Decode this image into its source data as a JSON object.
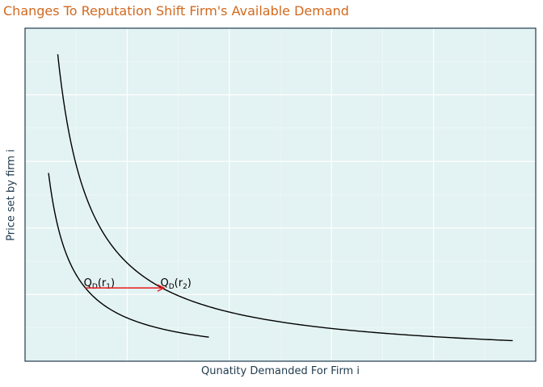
{
  "chart_data": {
    "type": "line",
    "title": "Changes To Reputation Shift Firm's Available Demand",
    "xlabel": "Qunatity Demanded For Firm i",
    "ylabel": "Price set by firm i",
    "grid": true,
    "xlim": [
      0,
      10
    ],
    "ylim": [
      0,
      10
    ],
    "series": [
      {
        "label_main": "Q",
        "label_sub1": "D",
        "label_mid": "(r",
        "label_sub2": "1",
        "label_end": ")",
        "k": 2.6,
        "xstart": 0.46,
        "xend": 3.6,
        "label_x": 1.15,
        "label_y": 2.25,
        "color": "#000000"
      },
      {
        "label_main": "Q",
        "label_sub1": "D",
        "label_mid": "(r",
        "label_sub2": "2",
        "label_end": ")",
        "k": 5.9,
        "xstart": 0.64,
        "xend": 9.55,
        "label_x": 2.65,
        "label_y": 2.25,
        "color": "#000000"
      }
    ],
    "shift_arrow": {
      "from_x": 1.18,
      "to_x": 2.72,
      "y": 2.2,
      "color": "#e8191e"
    },
    "colors": {
      "panel": "#e3f2f2",
      "grid_major": "#ffffff",
      "grid_minor": "#f1f9f9",
      "border": "#1f3a4d"
    }
  }
}
